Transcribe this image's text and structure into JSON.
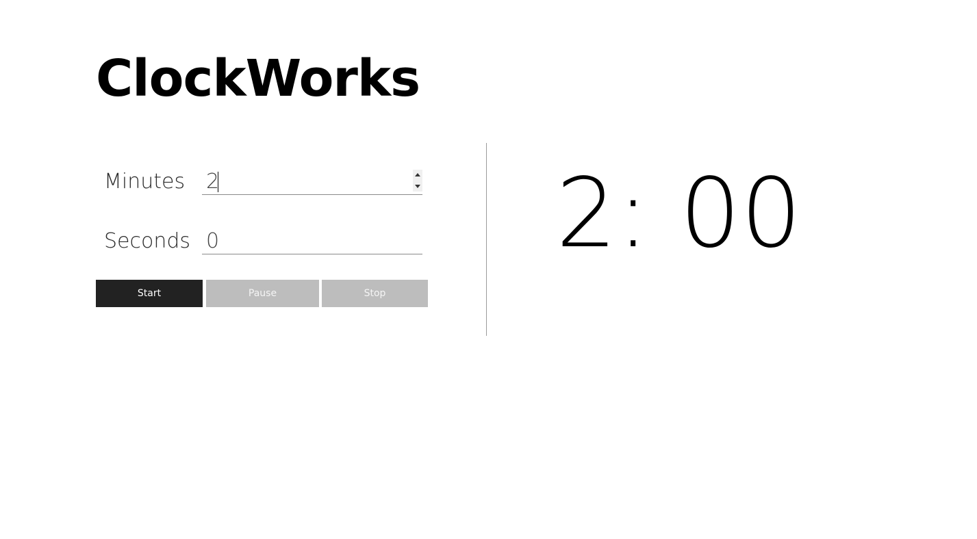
{
  "app": {
    "title": "ClockWorks"
  },
  "form": {
    "minutes": {
      "label": "Minutes",
      "value": "2"
    },
    "seconds": {
      "label": "Seconds",
      "value": "0"
    }
  },
  "controls": {
    "start_label": "Start",
    "pause_label": "Pause",
    "stop_label": "Stop"
  },
  "display": {
    "time": "2: 00"
  },
  "colors": {
    "primary_button": "#222222",
    "disabled_button": "#bdbdbd",
    "text": "#000000"
  }
}
